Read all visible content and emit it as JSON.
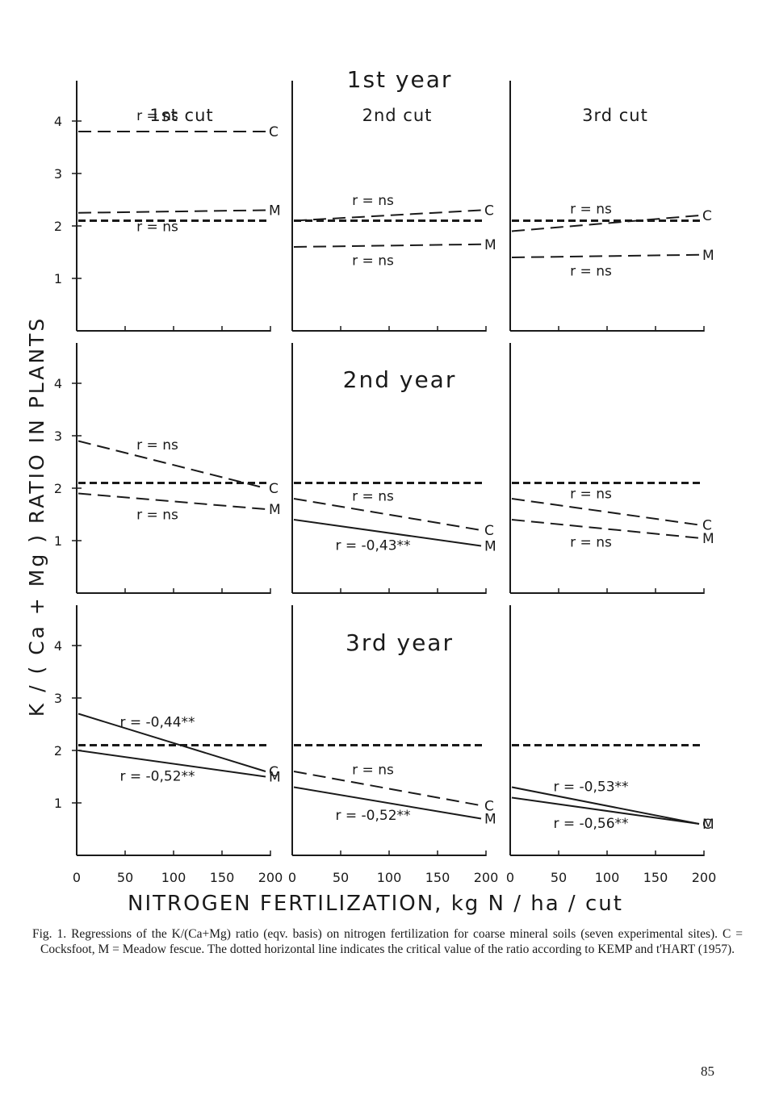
{
  "figure": {
    "ylabel": "K / ( Ca + Mg ) RATIO IN PLANTS",
    "xlabel": "NITROGEN FERTILIZATION, kg N / ha / cut",
    "caption": "Fig. 1. Regressions of the K/(Ca+Mg) ratio (eqv. basis) on nitrogen fertilization for coarse mineral soils (seven experimental sites). C = Cocksfoot, M = Meadow fescue. The dotted horizontal line indicates the critical value of the ratio according to KEMP and t'HART (1957).",
    "page_number": "85",
    "ink_color": "#1a1a1a"
  },
  "chart_data": {
    "type": "line",
    "title": "",
    "xlabel": "NITROGEN FERTILIZATION, kg N / ha / cut",
    "ylabel": "K / ( Ca + Mg ) RATIO IN PLANTS",
    "xlim": [
      0,
      200
    ],
    "ylim": [
      0,
      4.5
    ],
    "x_ticks": [
      0,
      50,
      100,
      150,
      200
    ],
    "x_tick_labels": [
      "0",
      "50",
      "100",
      "150",
      "200"
    ],
    "y_ticks": [
      1,
      2,
      3,
      4
    ],
    "y_tick_labels": [
      "1",
      "2",
      "3",
      "4"
    ],
    "grid": false,
    "critical_value": 2.1,
    "year_labels": [
      "1st year",
      "2nd year",
      "3rd year"
    ],
    "cut_labels": [
      "1st cut",
      "2nd cut",
      "3rd cut"
    ],
    "panels": [
      {
        "year": "1st year",
        "cut": "1st cut",
        "lines": [
          {
            "label": "C",
            "r": "r = ns",
            "style": "dashed",
            "y": [
              3.8,
              3.8
            ]
          },
          {
            "label": "M",
            "r": "r = ns",
            "style": "dashed",
            "y": [
              2.25,
              2.3
            ]
          }
        ]
      },
      {
        "year": "1st year",
        "cut": "2nd cut",
        "lines": [
          {
            "label": "C",
            "r": "r = ns",
            "style": "dashed",
            "y": [
              2.1,
              2.3
            ]
          },
          {
            "label": "M",
            "r": "r = ns",
            "style": "dashed",
            "y": [
              1.6,
              1.65
            ]
          }
        ]
      },
      {
        "year": "1st year",
        "cut": "3rd cut",
        "lines": [
          {
            "label": "C",
            "r": "r = ns",
            "style": "dashed",
            "y": [
              1.9,
              2.2
            ]
          },
          {
            "label": "M",
            "r": "r = ns",
            "style": "dashed",
            "y": [
              1.4,
              1.45
            ]
          }
        ]
      },
      {
        "year": "2nd year",
        "cut": "1st cut",
        "lines": [
          {
            "label": "C",
            "r": "r = ns",
            "style": "dashed",
            "y": [
              2.9,
              2.0
            ]
          },
          {
            "label": "M",
            "r": "r = ns",
            "style": "dashed",
            "y": [
              1.9,
              1.6
            ]
          }
        ]
      },
      {
        "year": "2nd year",
        "cut": "2nd cut",
        "lines": [
          {
            "label": "C",
            "r": "r = ns",
            "style": "dashed",
            "y": [
              1.8,
              1.2
            ]
          },
          {
            "label": "M",
            "r": "r = -0,43**",
            "style": "solid",
            "y": [
              1.4,
              0.9
            ]
          }
        ]
      },
      {
        "year": "2nd year",
        "cut": "3rd cut",
        "lines": [
          {
            "label": "C",
            "r": "r = ns",
            "style": "dashed",
            "y": [
              1.8,
              1.3
            ]
          },
          {
            "label": "M",
            "r": "r = ns",
            "style": "dashed",
            "y": [
              1.4,
              1.05
            ]
          }
        ]
      },
      {
        "year": "3rd year",
        "cut": "1st cut",
        "lines": [
          {
            "label": "C",
            "r": "r = -0,44**",
            "style": "solid",
            "y": [
              2.7,
              1.6
            ]
          },
          {
            "label": "M",
            "r": "r = -0,52**",
            "style": "solid",
            "y": [
              2.0,
              1.5
            ]
          }
        ]
      },
      {
        "year": "3rd year",
        "cut": "2nd cut",
        "lines": [
          {
            "label": "C",
            "r": "r = ns",
            "style": "dashed",
            "y": [
              1.6,
              0.95
            ]
          },
          {
            "label": "M",
            "r": "r = -0,52**",
            "style": "solid",
            "y": [
              1.3,
              0.7
            ]
          }
        ]
      },
      {
        "year": "3rd year",
        "cut": "3rd cut",
        "lines": [
          {
            "label": "C",
            "r": "r = -0,53**",
            "style": "solid",
            "y": [
              1.3,
              0.6
            ]
          },
          {
            "label": "M",
            "r": "r = -0,56**",
            "style": "solid",
            "y": [
              1.1,
              0.6
            ]
          }
        ]
      }
    ]
  }
}
